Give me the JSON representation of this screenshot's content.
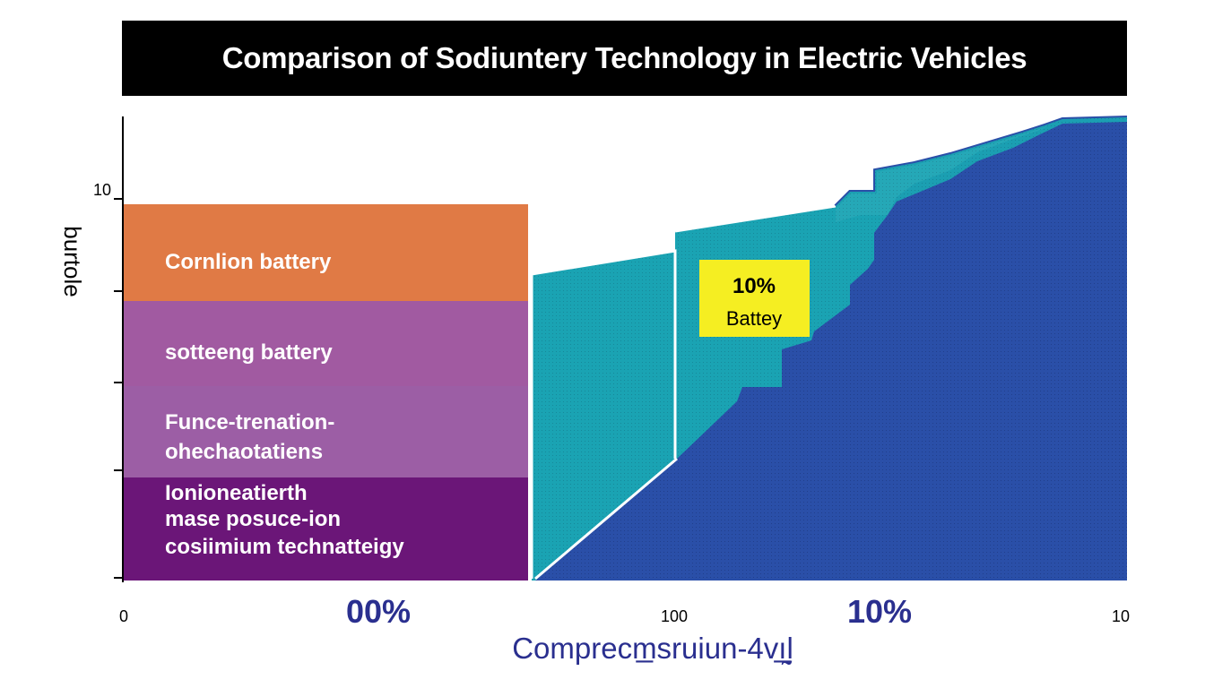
{
  "title": "Comparison of Sodiuntery Technology in Electric Vehicles",
  "chart_data": {
    "type": "area",
    "title": "Comparison of Sodiuntery Technology in Electric Vehicles",
    "xlabel": "Comprecm̲sruiun-4vı̲̰l",
    "ylabel": "burtole",
    "y_tick_labels": [
      "10"
    ],
    "x_tick_labels": [
      {
        "text": "0",
        "style": "small"
      },
      {
        "text": "00%",
        "style": "large"
      },
      {
        "text": "100",
        "style": "small"
      },
      {
        "text": "10%",
        "style": "large"
      },
      {
        "text": "10",
        "style": "small"
      }
    ],
    "bands": [
      {
        "label_lines": [
          "Cornlion battery"
        ],
        "color": "#e07a45"
      },
      {
        "label_lines": [
          "sotteeng battery"
        ],
        "color": "#a15aa1"
      },
      {
        "label_lines": [
          "Funce-trenation-",
          "ohechaotatiens"
        ],
        "color": "#9c5ea5"
      },
      {
        "label_lines": [
          "Ionioneatierth",
          "mase posuce-ion",
          "cosiimium technatteigy"
        ],
        "color": "#6b1678"
      }
    ],
    "areas": [
      {
        "name": "teal",
        "color": "#1aa3b3"
      },
      {
        "name": "blue",
        "color": "#2a4fa8"
      }
    ],
    "annotation": {
      "lines": [
        "10%",
        "Battey"
      ],
      "color": "#f5ee22"
    },
    "grid": false,
    "legend": "none"
  }
}
